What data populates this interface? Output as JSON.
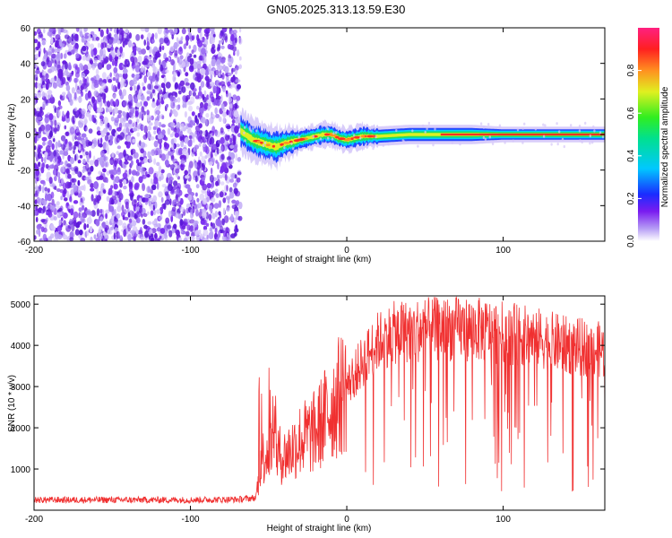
{
  "title": "GN05.2025.313.13.59.E30",
  "colors": {
    "snr_line": "#f03030",
    "noise_purple": "#6a1fe0",
    "signal_band": [
      "#1a3cff",
      "#00d8ff",
      "#22dd55",
      "#e8f020",
      "#ff3020"
    ]
  },
  "chart_data": [
    {
      "type": "heatmap",
      "name": "spectrogram",
      "xlabel": "Height of straight line (km)",
      "ylabel": "Frequency (Hz)",
      "xlim": [
        -200,
        165
      ],
      "ylim": [
        -60,
        60
      ],
      "x_ticks": [
        -200,
        -100,
        0,
        100
      ],
      "y_ticks": [
        -60,
        -40,
        -20,
        0,
        20,
        40,
        60
      ],
      "noise_region_x": [
        -200,
        -68
      ],
      "signal_start_x": -68,
      "signal_track": {
        "x": [
          -68,
          -60,
          -50,
          -45,
          -40,
          -35,
          -30,
          -25,
          -20,
          -15,
          -10,
          -5,
          0,
          5,
          10,
          20,
          40,
          60,
          80,
          100,
          120,
          140,
          165
        ],
        "frequency": [
          2,
          -3,
          -6,
          -7,
          -5,
          -4,
          -3,
          -2,
          -1,
          0,
          0,
          -2,
          -3,
          -2,
          -1,
          -1,
          0,
          0,
          0,
          0,
          0,
          0,
          0
        ],
        "half_width_hz": [
          5,
          5,
          5,
          5,
          4,
          4,
          3,
          3,
          3,
          3,
          3,
          3,
          3,
          3,
          3,
          2.5,
          2.5,
          2.5,
          2.5,
          2,
          2,
          2,
          2
        ]
      },
      "colorbar": {
        "label": "Normalized spectral amplitude",
        "ticks": [
          0.0,
          0.2,
          0.4,
          0.6,
          0.8
        ],
        "range": [
          0,
          1
        ],
        "tick_labels": [
          "0.0",
          "0.2",
          "0.4",
          "0.6",
          "0.8"
        ]
      },
      "grid": false
    },
    {
      "type": "line",
      "name": "snr",
      "xlabel": "Height of straight line (km)",
      "ylabel": "SNR (10 * v/v)",
      "xlim": [
        -200,
        165
      ],
      "ylim": [
        0,
        5200
      ],
      "x_ticks": [
        -200,
        -100,
        0,
        100
      ],
      "y_ticks": [
        1000,
        2000,
        3000,
        4000,
        5000
      ],
      "series": [
        {
          "x": [
            -200,
            -150,
            -100,
            -70,
            -58,
            -55,
            -50,
            -45,
            -40,
            -30,
            -20,
            -10,
            0,
            10,
            20,
            30,
            40,
            60,
            80,
            100,
            120,
            140,
            160,
            165
          ],
          "values": [
            250,
            250,
            250,
            260,
            300,
            1200,
            1500,
            1400,
            1300,
            1700,
            1900,
            2500,
            3000,
            3600,
            4100,
            4300,
            4350,
            4400,
            4400,
            4300,
            4200,
            4000,
            3900,
            3850
          ]
        }
      ],
      "grid": false
    }
  ]
}
